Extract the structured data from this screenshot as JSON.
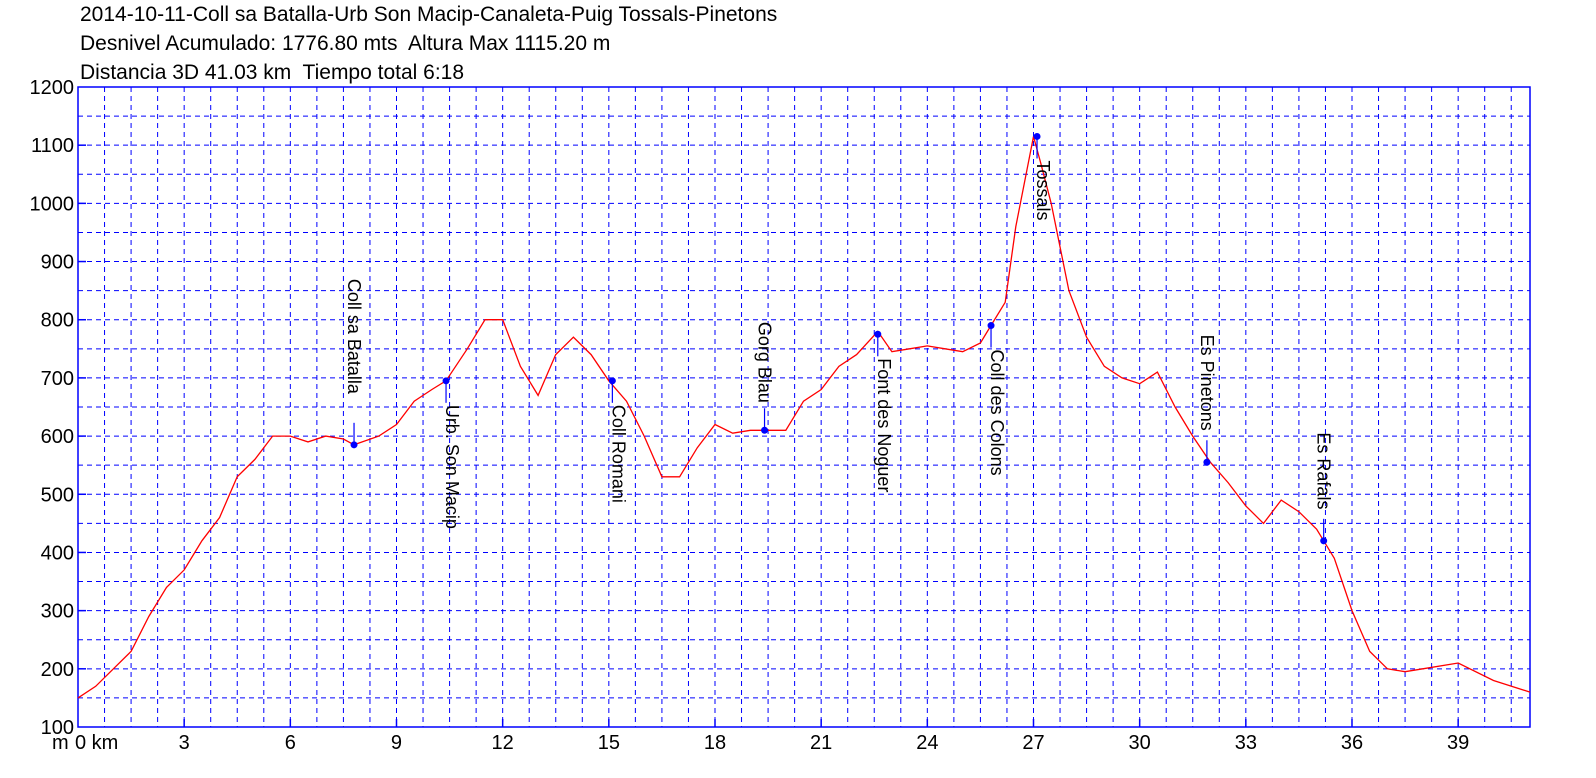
{
  "header": {
    "title": "2014-10-11-Coll sa Batalla-Urb Son Macip-Canaleta-Puig Tossals-Pinetons",
    "line2": "Desnivel Acumulado: 1776.80 mts  Altura Max 1115.20 m",
    "line3": "Distancia 3D 41.03 km  Tiempo total 6:18"
  },
  "chart_data": {
    "type": "line",
    "xlim": [
      0,
      41.03
    ],
    "ylim": [
      100,
      1200
    ],
    "x_unit_label": "km",
    "y_unit_label": "m",
    "x_ticks": [
      0,
      3,
      6,
      9,
      12,
      15,
      18,
      21,
      24,
      27,
      30,
      33,
      36,
      39
    ],
    "y_ticks": [
      100,
      200,
      300,
      400,
      500,
      600,
      700,
      800,
      900,
      1000,
      1100,
      1200
    ],
    "grid": true,
    "colors": {
      "line": "#ff0000",
      "grid": "#0000ff",
      "frame": "#0000ff",
      "waypoint": "#0000ff"
    },
    "series": [
      {
        "x": [
          0,
          0.5,
          1,
          1.5,
          2,
          2.5,
          3,
          3.5,
          4,
          4.5,
          5,
          5.5,
          6,
          6.5,
          7,
          7.5,
          7.8,
          8.5,
          9,
          9.5,
          10,
          10.4,
          11,
          11.5,
          12,
          12.5,
          13,
          13.5,
          14,
          14.5,
          15,
          15.5,
          16,
          16.5,
          17,
          17.5,
          18,
          18.5,
          19,
          19.4,
          20,
          20.5,
          21,
          21.5,
          22,
          22.6,
          23,
          23.5,
          24,
          24.5,
          25,
          25.5,
          25.8,
          26.2,
          26.5,
          27.0,
          27.2,
          27.5,
          28,
          28.5,
          29,
          29.5,
          30,
          30.5,
          31,
          31.5,
          32,
          32.5,
          33,
          33.5,
          34,
          34.5,
          35,
          35.2,
          35.5,
          36,
          36.5,
          37,
          37.5,
          38,
          39,
          40,
          41.03
        ],
        "y": [
          150,
          170,
          200,
          230,
          290,
          340,
          370,
          420,
          460,
          530,
          560,
          600,
          600,
          590,
          600,
          595,
          585,
          600,
          620,
          660,
          680,
          695,
          750,
          800,
          800,
          720,
          670,
          740,
          770,
          740,
          695,
          660,
          600,
          530,
          530,
          580,
          620,
          605,
          610,
          610,
          610,
          660,
          680,
          720,
          740,
          780,
          745,
          750,
          755,
          750,
          745,
          760,
          790,
          830,
          960,
          1115,
          1070,
          1000,
          850,
          770,
          720,
          700,
          690,
          710,
          650,
          600,
          555,
          520,
          480,
          450,
          490,
          470,
          440,
          420,
          390,
          300,
          230,
          200,
          195,
          200,
          210,
          180,
          160
        ]
      }
    ],
    "waypoints": [
      {
        "name": "Coll sa Batalla",
        "x": 7.8,
        "y": 585
      },
      {
        "name": "Urb. Son Macip",
        "x": 10.4,
        "y": 695
      },
      {
        "name": "Coll Romani",
        "x": 15.1,
        "y": 695
      },
      {
        "name": "Gorg Blau",
        "x": 19.4,
        "y": 610
      },
      {
        "name": "Font des Noguer",
        "x": 22.6,
        "y": 775
      },
      {
        "name": "Coll des Colons",
        "x": 25.8,
        "y": 790
      },
      {
        "name": "Tossals",
        "x": 27.1,
        "y": 1115
      },
      {
        "name": "Es Pinetons",
        "x": 31.9,
        "y": 555
      },
      {
        "name": "Es Rafals",
        "x": 35.2,
        "y": 420
      }
    ]
  }
}
